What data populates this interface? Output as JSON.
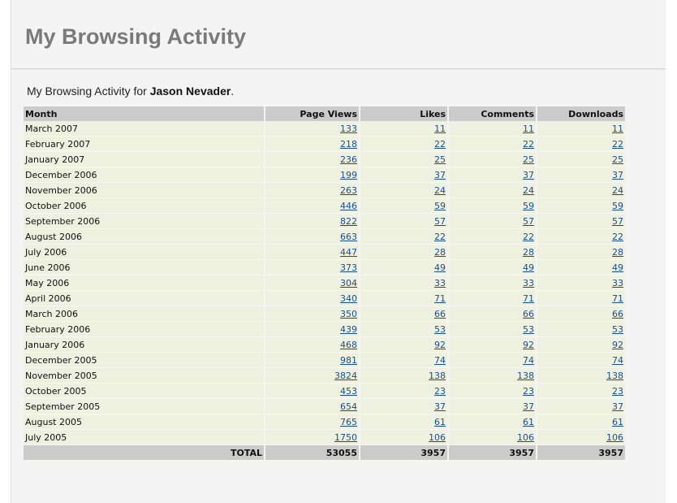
{
  "page": {
    "title": "My Browsing Activity",
    "intro_prefix": "My Browsing Activity for ",
    "user_name": "Jason Nevader",
    "intro_suffix": "."
  },
  "table": {
    "headers": {
      "month": "Month",
      "views": "Page Views",
      "likes": "Likes",
      "comments": "Comments",
      "downloads": "Downloads"
    },
    "rows": [
      {
        "month": "March 2007",
        "views": "133",
        "likes": "11",
        "comments": "11",
        "downloads": "11"
      },
      {
        "month": "February 2007",
        "views": "218",
        "likes": "22",
        "comments": "22",
        "downloads": "22"
      },
      {
        "month": "January 2007",
        "views": "236",
        "likes": "25",
        "comments": "25",
        "downloads": "25"
      },
      {
        "month": "December 2006",
        "views": "199",
        "likes": "37",
        "comments": "37",
        "downloads": "37"
      },
      {
        "month": "November 2006",
        "views": "263",
        "likes": "24",
        "comments": "24",
        "downloads": "24"
      },
      {
        "month": "October 2006",
        "views": "446",
        "likes": "59",
        "comments": "59",
        "downloads": "59"
      },
      {
        "month": "September 2006",
        "views": "822",
        "likes": "57",
        "comments": "57",
        "downloads": "57"
      },
      {
        "month": "August 2006",
        "views": "663",
        "likes": "22",
        "comments": "22",
        "downloads": "22"
      },
      {
        "month": "July 2006",
        "views": "447",
        "likes": "28",
        "comments": "28",
        "downloads": "28"
      },
      {
        "month": "June 2006",
        "views": "373",
        "likes": "49",
        "comments": "49",
        "downloads": "49"
      },
      {
        "month": "May 2006",
        "views": "304",
        "likes": "33",
        "comments": "33",
        "downloads": "33"
      },
      {
        "month": "April 2006",
        "views": "340",
        "likes": "71",
        "comments": "71",
        "downloads": "71"
      },
      {
        "month": "March 2006",
        "views": "350",
        "likes": "66",
        "comments": "66",
        "downloads": "66"
      },
      {
        "month": "February 2006",
        "views": "439",
        "likes": "53",
        "comments": "53",
        "downloads": "53"
      },
      {
        "month": "January 2006",
        "views": "468",
        "likes": "92",
        "comments": "92",
        "downloads": "92"
      },
      {
        "month": "December 2005",
        "views": "981",
        "likes": "74",
        "comments": "74",
        "downloads": "74"
      },
      {
        "month": "November 2005",
        "views": "3824",
        "likes": "138",
        "comments": "138",
        "downloads": "138"
      },
      {
        "month": "October 2005",
        "views": "453",
        "likes": "23",
        "comments": "23",
        "downloads": "23"
      },
      {
        "month": "September 2005",
        "views": "654",
        "likes": "37",
        "comments": "37",
        "downloads": "37"
      },
      {
        "month": "August 2005",
        "views": "765",
        "likes": "61",
        "comments": "61",
        "downloads": "61"
      },
      {
        "month": "July 2005",
        "views": "1750",
        "likes": "106",
        "comments": "106",
        "downloads": "106"
      }
    ],
    "total": {
      "label": "TOTAL",
      "views": "53055",
      "likes": "3957",
      "comments": "3957",
      "downloads": "3957"
    }
  },
  "colors": {
    "row_bg": "#eef0e0",
    "header_bg": "#cbcbcb",
    "link": "#1b4e8a",
    "title": "#7a7a7a"
  }
}
